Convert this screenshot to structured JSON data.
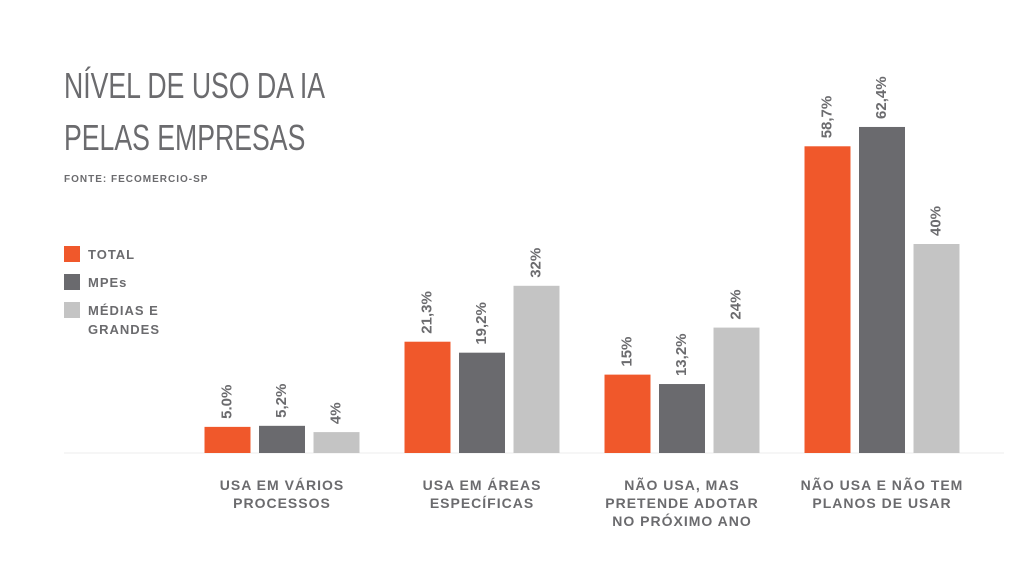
{
  "chart_data": {
    "type": "bar",
    "title": "NÍVEL DE USO DA IA PELAS EMPRESAS",
    "source": "FONTE: FECOMERCIO-SP",
    "categories": [
      "USA EM VÁRIOS PROCESSOS",
      "USA EM ÁREAS ESPECÍFICAS",
      "NÃO USA, MAS PRETENDE ADOTAR NO PRÓXIMO ANO",
      "NÃO USA E NÃO TEM PLANOS DE USAR"
    ],
    "series": [
      {
        "name": "TOTAL",
        "color": "#f0582b",
        "values": [
          5.0,
          21.3,
          15,
          58.7
        ],
        "value_labels": [
          "5.0%",
          "21,3%",
          "15%",
          "58,7%"
        ]
      },
      {
        "name": "MPEs",
        "color": "#6a6a6e",
        "values": [
          5.2,
          19.2,
          13.2,
          62.4
        ],
        "value_labels": [
          "5,2%",
          "19,2%",
          "13,2%",
          "62,4%"
        ]
      },
      {
        "name": "MÉDIAS E GRANDES",
        "color": "#c4c4c4",
        "values": [
          4,
          32,
          24,
          40
        ],
        "value_labels": [
          "4%",
          "32%",
          "24%",
          "40%"
        ]
      }
    ],
    "ylim": [
      0,
      80
    ]
  }
}
